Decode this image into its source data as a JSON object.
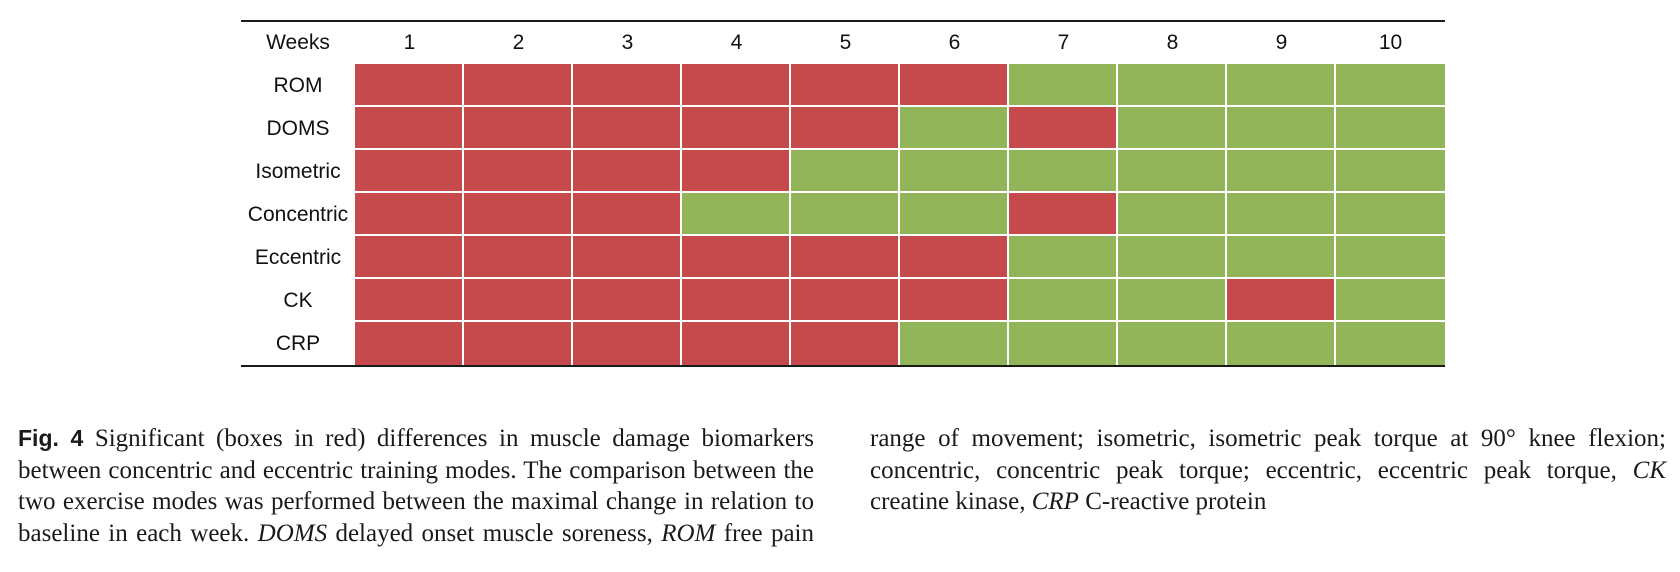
{
  "figure": {
    "row_header_label": "Weeks"
  },
  "colors": {
    "significant": "#c64a4c",
    "not_significant": "#93b55a"
  },
  "chart_data": {
    "type": "heatmap",
    "x_label": "Weeks",
    "columns": [
      "1",
      "2",
      "3",
      "4",
      "5",
      "6",
      "7",
      "8",
      "9",
      "10"
    ],
    "rows": [
      {
        "label": "ROM",
        "significant": [
          1,
          1,
          1,
          1,
          1,
          1,
          0,
          0,
          0,
          0
        ]
      },
      {
        "label": "DOMS",
        "significant": [
          1,
          1,
          1,
          1,
          1,
          0,
          1,
          0,
          0,
          0
        ]
      },
      {
        "label": "Isometric",
        "significant": [
          1,
          1,
          1,
          1,
          0,
          0,
          0,
          0,
          0,
          0
        ]
      },
      {
        "label": "Concentric",
        "significant": [
          1,
          1,
          1,
          0,
          0,
          0,
          1,
          0,
          0,
          0
        ]
      },
      {
        "label": "Eccentric",
        "significant": [
          1,
          1,
          1,
          1,
          1,
          1,
          0,
          0,
          0,
          0
        ]
      },
      {
        "label": "CK",
        "significant": [
          1,
          1,
          1,
          1,
          1,
          1,
          0,
          0,
          1,
          0
        ]
      },
      {
        "label": "CRP",
        "significant": [
          1,
          1,
          1,
          1,
          1,
          0,
          0,
          0,
          0,
          0
        ]
      }
    ],
    "legend_note": "red = significant difference, green = no significant difference"
  },
  "caption": {
    "label": "Fig. 4",
    "t1": " Significant (boxes in red) differences in muscle damage biomarkers between concentric and eccentric training modes. The comparison between the two exercise modes was performed between the maximal change in relation to baseline in each week. ",
    "a1": "DOMS",
    "t2": " delayed onset muscle soreness, ",
    "a2": "ROM",
    "t3": " free pain range of movement; isometric, isometric peak torque at 90° knee flexion; concentric, concentric peak torque; eccentric, eccentric peak torque, ",
    "a3": "CK",
    "t4": " creatine kinase, ",
    "a4": "CRP",
    "t5": " C-reactive protein"
  }
}
